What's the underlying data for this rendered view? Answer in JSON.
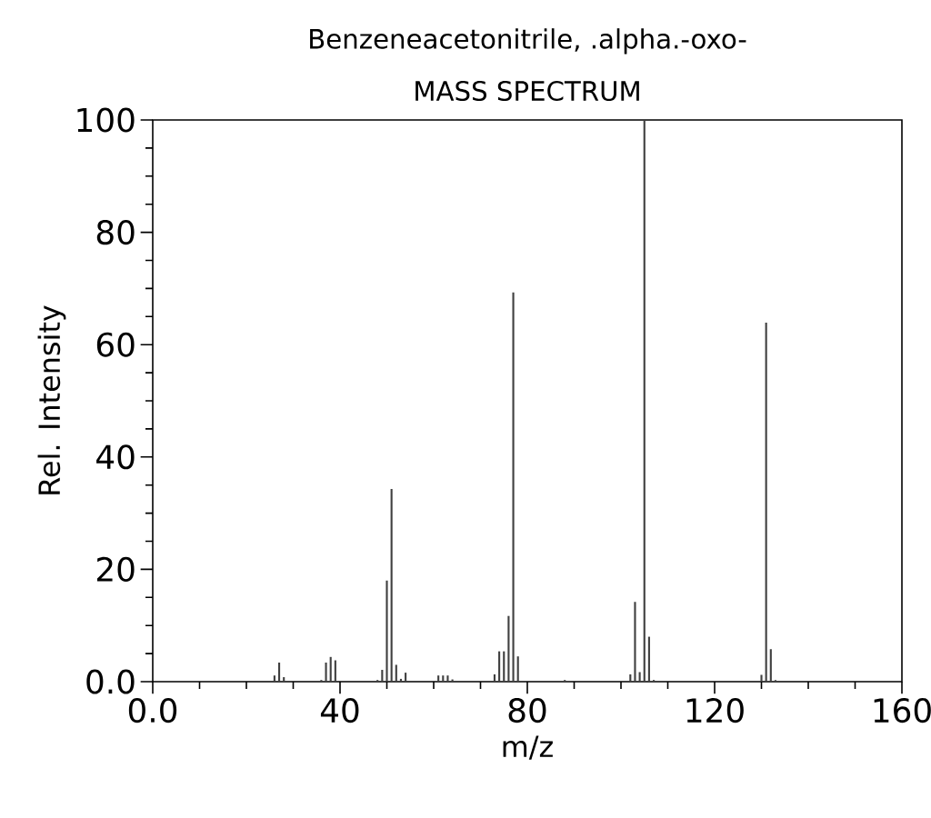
{
  "chart_data": {
    "type": "bar",
    "title": "Benzeneacetonitrile, .alpha.-oxo-",
    "subtitle": "MASS SPECTRUM",
    "xlabel": "m/z",
    "ylabel": "Rel. Intensity",
    "x": [
      26,
      27,
      28,
      36,
      37,
      38,
      39,
      48,
      49,
      50,
      51,
      52,
      53,
      54,
      61,
      62,
      63,
      64,
      73,
      74,
      75,
      76,
      77,
      78,
      88,
      102,
      103,
      104,
      105,
      106,
      107,
      130,
      131,
      132,
      133
    ],
    "values": [
      1.1,
      3.4,
      0.8,
      0.3,
      3.4,
      4.4,
      3.8,
      0.3,
      2.1,
      18,
      34.3,
      3,
      0.5,
      1.6,
      1.1,
      1.1,
      1.1,
      0.4,
      1.3,
      5.4,
      5.4,
      11.7,
      69.3,
      4.5,
      0.3,
      1.3,
      14.2,
      1.7,
      100,
      8,
      0.3,
      1.2,
      63.9,
      5.8,
      0.3
    ],
    "color": "#404040",
    "xlim": [
      0,
      160
    ],
    "xticks": [
      {
        "value": 0,
        "label": "0.0"
      },
      40,
      80,
      120,
      160
    ],
    "ylim": [
      0,
      100
    ],
    "yticks": [
      {
        "value": 0,
        "label": "0.0"
      },
      20,
      40,
      60,
      80,
      100
    ]
  }
}
